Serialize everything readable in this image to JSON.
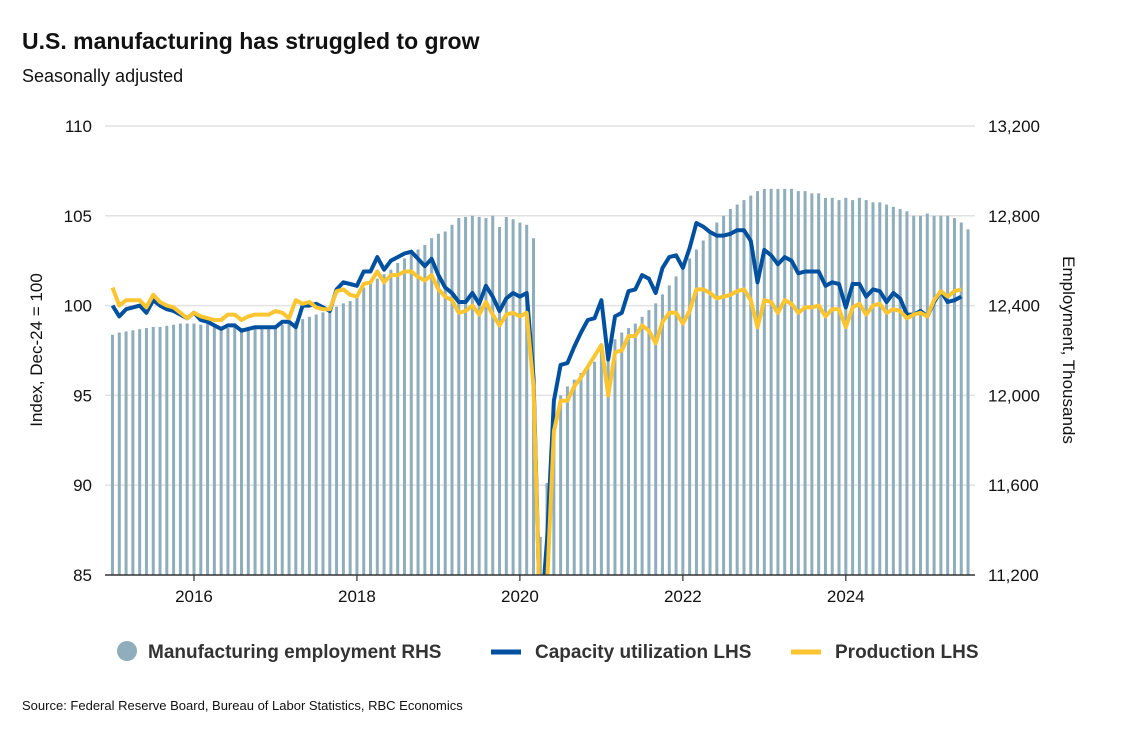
{
  "chart_data": {
    "type": "bar+line",
    "title": "U.S. manufacturing has struggled to grow",
    "subtitle": "Seasonally adjusted",
    "source": "Source: Federal Reserve Board, Bureau of Labor Statistics, RBC Economics",
    "start": "2015-01",
    "frequency": "monthly",
    "x_ticks": [
      "2016",
      "2018",
      "2020",
      "2022",
      "2024"
    ],
    "ylabel_left": "Index, Dec-24 = 100",
    "ylabel_right": "Employment, Thousands",
    "ylim_left": [
      85,
      110
    ],
    "ylim_right": [
      11200,
      13200
    ],
    "left_ticks": [
      "85",
      "90",
      "95",
      "100",
      "105",
      "110"
    ],
    "right_ticks": [
      "11,200",
      "11,600",
      "12,000",
      "12,400",
      "12,800",
      "13,200"
    ],
    "legend_position": "bottom",
    "series": [
      {
        "name": "Manufacturing employment RHS",
        "type": "bar",
        "axis": "right",
        "color": "#8fadbb",
        "values": [
          12270,
          12280,
          12285,
          12290,
          12295,
          12300,
          12305,
          12305,
          12310,
          12315,
          12320,
          12320,
          12320,
          12315,
          12320,
          12310,
          12305,
          12300,
          12305,
          12300,
          12295,
          12300,
          12300,
          12305,
          12310,
          12315,
          12320,
          12330,
          12340,
          12350,
          12360,
          12370,
          12385,
          12395,
          12410,
          12420,
          12450,
          12480,
          12500,
          12520,
          12540,
          12560,
          12590,
          12610,
          12630,
          12650,
          12670,
          12700,
          12720,
          12730,
          12760,
          12790,
          12795,
          12800,
          12795,
          12790,
          12800,
          12750,
          12795,
          12785,
          12770,
          12760,
          12700,
          11370,
          11610,
          11960,
          12000,
          12040,
          12070,
          12100,
          12130,
          12150,
          12215,
          12220,
          12250,
          12280,
          12300,
          12320,
          12350,
          12380,
          12410,
          12450,
          12490,
          12530,
          12560,
          12610,
          12650,
          12690,
          12730,
          12770,
          12800,
          12830,
          12850,
          12870,
          12890,
          12910,
          12920,
          12920,
          12920,
          12920,
          12920,
          12910,
          12910,
          12900,
          12900,
          12880,
          12880,
          12870,
          12880,
          12870,
          12880,
          12870,
          12860,
          12860,
          12850,
          12840,
          12830,
          12820,
          12800,
          12800,
          12810,
          12800,
          12800,
          12800,
          12790,
          12770,
          12740
        ]
      },
      {
        "name": "Capacity utilization LHS",
        "type": "line",
        "axis": "left",
        "color": "#0050a0",
        "values": [
          100.0,
          99.4,
          99.8,
          99.9,
          100.0,
          99.6,
          100.3,
          100.0,
          99.8,
          99.7,
          99.5,
          99.3,
          99.6,
          99.2,
          99.1,
          98.9,
          98.7,
          98.9,
          98.9,
          98.6,
          98.7,
          98.8,
          98.8,
          98.8,
          98.8,
          99.1,
          99.1,
          98.8,
          100.0,
          100.0,
          100.1,
          99.9,
          99.7,
          100.9,
          101.3,
          101.2,
          101.1,
          101.9,
          101.9,
          102.7,
          102.0,
          102.5,
          102.7,
          102.9,
          103.0,
          102.6,
          102.2,
          102.6,
          101.7,
          101.0,
          100.7,
          100.2,
          100.2,
          100.7,
          100.1,
          101.1,
          100.5,
          99.7,
          100.4,
          100.7,
          100.5,
          100.7,
          96.0,
          82.0,
          87.0,
          94.7,
          96.7,
          96.8,
          97.7,
          98.5,
          99.2,
          99.3,
          100.3,
          97.0,
          99.4,
          99.6,
          100.8,
          100.9,
          101.7,
          101.5,
          100.7,
          102.1,
          102.7,
          102.8,
          102.1,
          103.2,
          104.6,
          104.4,
          104.1,
          103.9,
          103.9,
          104.0,
          104.2,
          104.2,
          103.6,
          101.3,
          103.1,
          102.8,
          102.3,
          102.7,
          102.5,
          101.8,
          101.9,
          101.9,
          101.9,
          101.1,
          101.3,
          101.2,
          99.9,
          101.2,
          101.2,
          100.5,
          100.9,
          100.8,
          100.2,
          100.7,
          100.4,
          99.5,
          99.5,
          99.7,
          99.4,
          100.2,
          100.8,
          100.2,
          100.3,
          100.5
        ]
      },
      {
        "name": "Production LHS",
        "type": "line",
        "axis": "left",
        "color": "#fbc531",
        "values": [
          101.0,
          100.0,
          100.3,
          100.3,
          100.3,
          99.9,
          100.6,
          100.2,
          100.0,
          99.9,
          99.6,
          99.3,
          99.6,
          99.4,
          99.3,
          99.2,
          99.2,
          99.5,
          99.5,
          99.2,
          99.4,
          99.5,
          99.5,
          99.5,
          99.7,
          99.6,
          99.3,
          100.3,
          100.1,
          100.2,
          99.9,
          99.8,
          99.8,
          100.8,
          100.9,
          100.6,
          100.5,
          101.2,
          101.3,
          101.9,
          101.3,
          101.7,
          101.7,
          101.9,
          101.9,
          101.6,
          101.4,
          101.7,
          100.9,
          100.5,
          100.3,
          99.6,
          99.7,
          100.0,
          99.5,
          100.2,
          99.5,
          98.9,
          99.5,
          99.6,
          99.4,
          99.6,
          95.5,
          82.0,
          84.5,
          93.0,
          94.7,
          94.7,
          95.5,
          96.0,
          96.6,
          97.2,
          97.8,
          95.0,
          97.4,
          97.5,
          98.3,
          98.3,
          98.9,
          98.6,
          97.9,
          99.1,
          99.6,
          99.6,
          99.0,
          99.7,
          100.9,
          100.9,
          100.7,
          100.4,
          100.5,
          100.6,
          100.8,
          100.9,
          100.3,
          98.8,
          100.3,
          100.2,
          99.6,
          100.3,
          100.1,
          99.6,
          99.9,
          99.9,
          100.0,
          99.4,
          99.8,
          99.8,
          98.8,
          99.9,
          100.1,
          99.5,
          100.0,
          100.1,
          99.6,
          99.8,
          99.7,
          99.3,
          99.5,
          99.6,
          99.4,
          100.3,
          100.8,
          100.5,
          100.8,
          100.9
        ]
      }
    ]
  }
}
